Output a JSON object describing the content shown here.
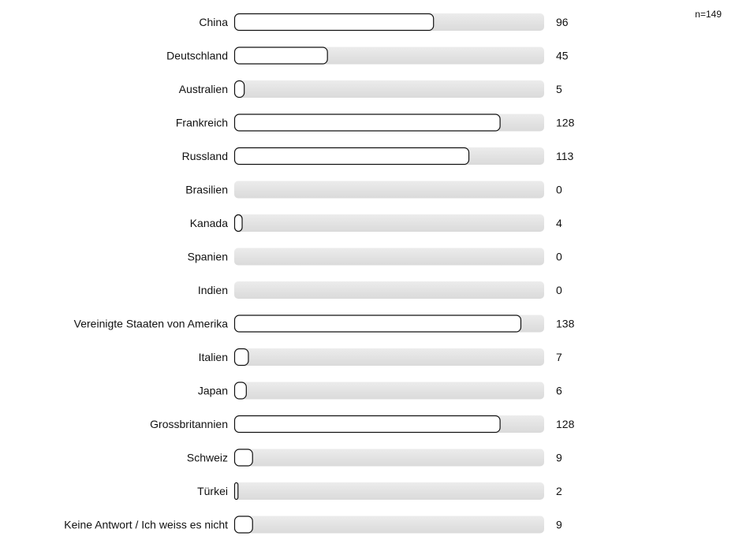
{
  "note": "n=149",
  "chart_data": {
    "type": "bar",
    "orientation": "horizontal",
    "categories": [
      "China",
      "Deutschland",
      "Australien",
      "Frankreich",
      "Russland",
      "Brasilien",
      "Kanada",
      "Spanien",
      "Indien",
      "Vereinigte Staaten von Amerika",
      "Italien",
      "Japan",
      "Grossbritannien",
      "Schweiz",
      "Türkei",
      "Keine Antwort / Ich weiss es nicht"
    ],
    "values": [
      96,
      45,
      5,
      128,
      113,
      0,
      4,
      0,
      0,
      138,
      7,
      6,
      128,
      9,
      2,
      9
    ],
    "xlim": [
      0,
      149
    ],
    "title": "",
    "xlabel": "",
    "ylabel": "",
    "grid": false,
    "legend": "none",
    "colors": {
      "track": "#e2e2e2",
      "bar_fill": "#ffffff",
      "bar_stroke": "#111111",
      "text": "#111111"
    }
  }
}
